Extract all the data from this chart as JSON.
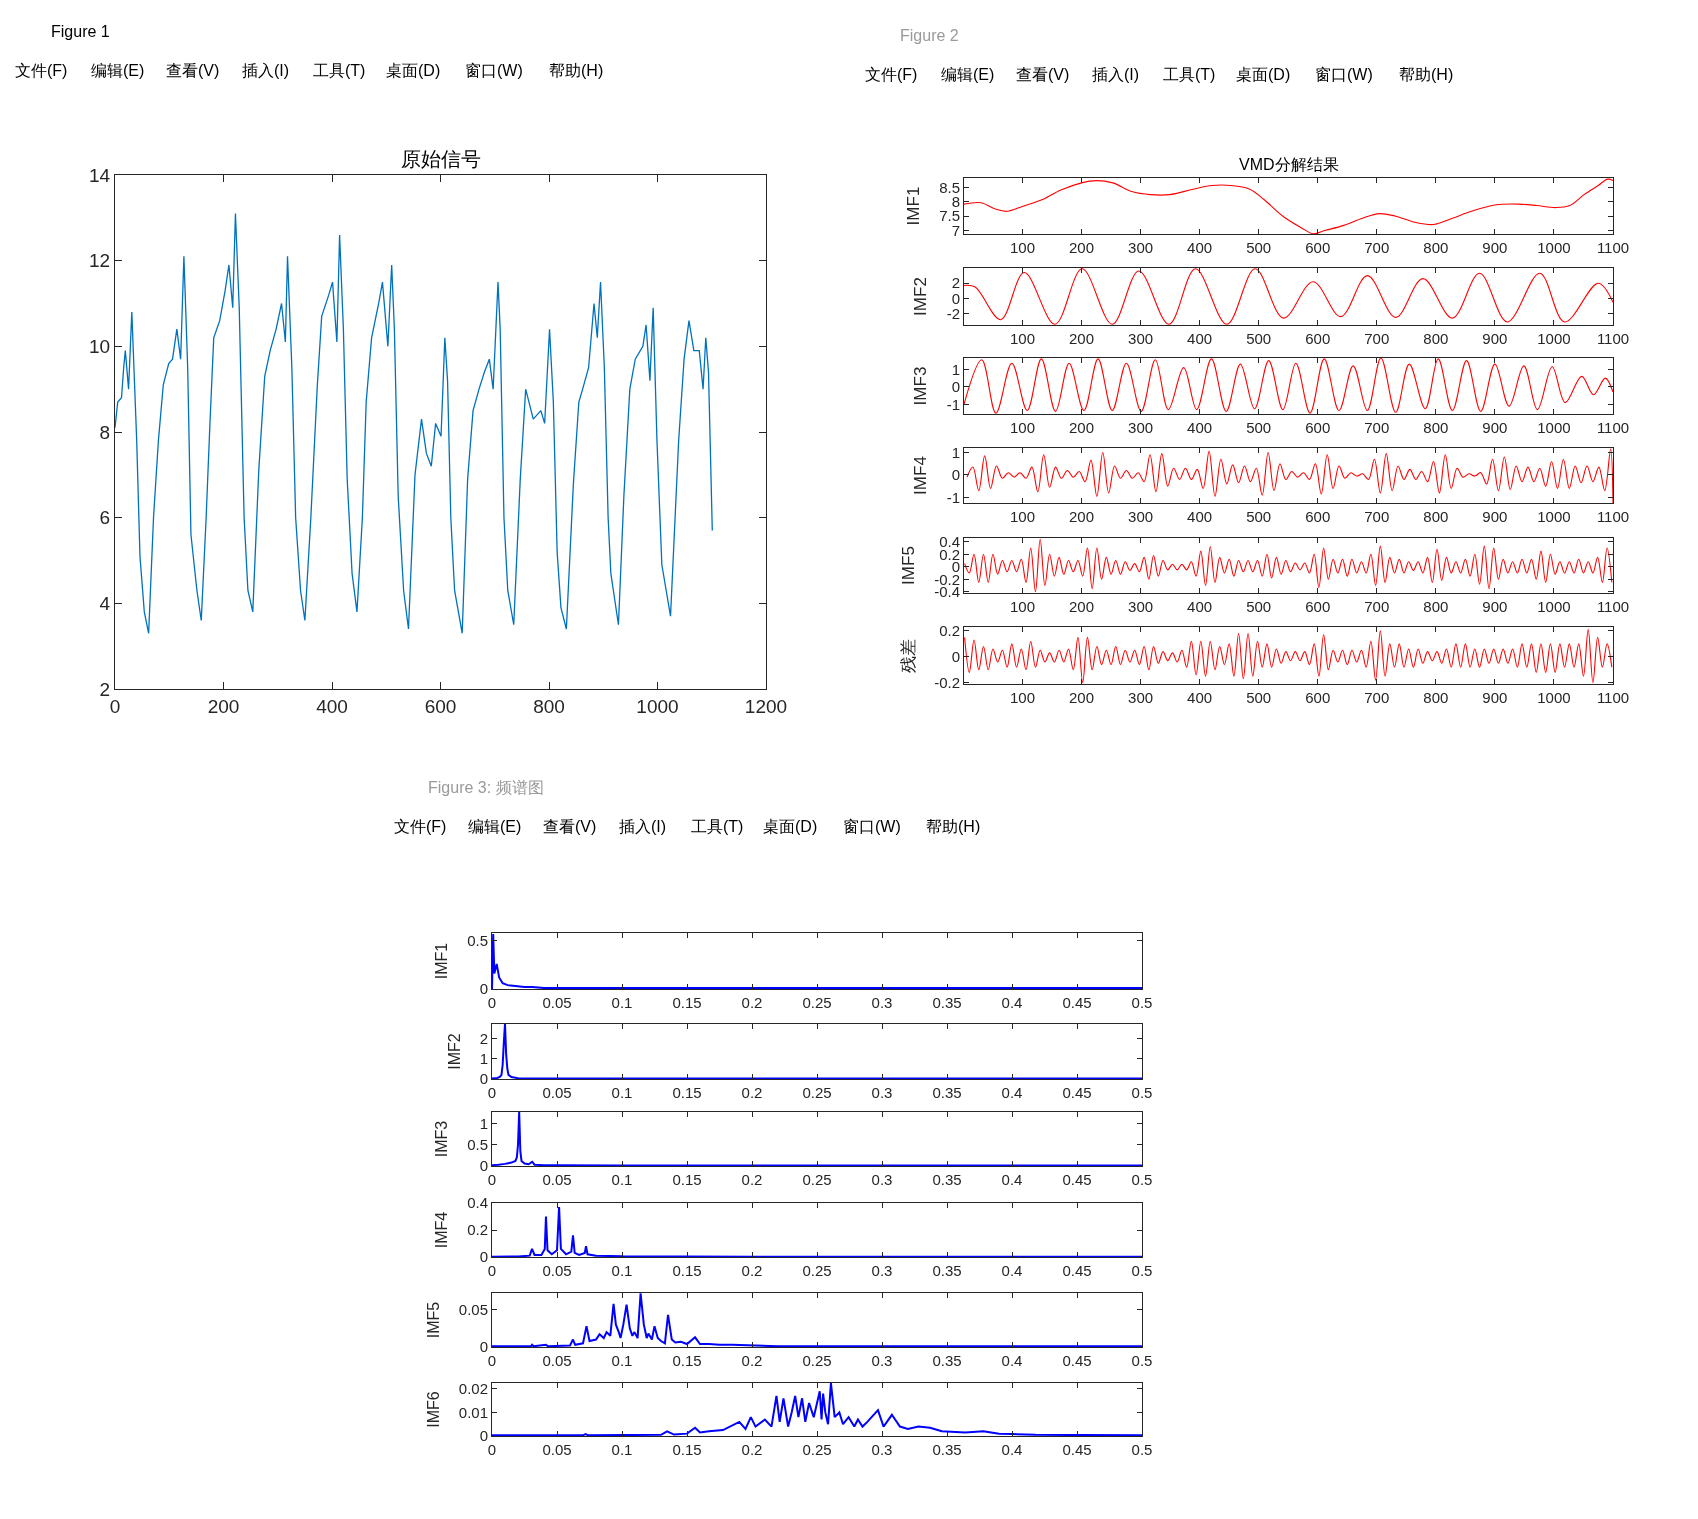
{
  "chart_data": [
    {
      "type": "line",
      "title": "原始信号",
      "annotations": [
        "Figure 1",
        "文件(F)",
        "编辑(E)",
        "查看(V)",
        "插入(I)",
        "工具(T)",
        "桌面(D)",
        "窗口(W)",
        "帮助(H)"
      ],
      "xlim": [
        0,
        1200
      ],
      "ylim": [
        2,
        14
      ],
      "xticks": [
        0,
        200,
        400,
        600,
        800,
        1000,
        1200
      ],
      "yticks": [
        2,
        4,
        6,
        8,
        10,
        12,
        14
      ],
      "series": [
        {
          "color": "#0072bd",
          "x": [
            0,
            5,
            12,
            16,
            19,
            25,
            31,
            40,
            46,
            54,
            62,
            71,
            80,
            89,
            99,
            106,
            114,
            121,
            127,
            134,
            140,
            151,
            159,
            168,
            175,
            182,
            193,
            203,
            210,
            217,
            222,
            229,
            238,
            245,
            254,
            265,
            276,
            286,
            297,
            307,
            314,
            318,
            326,
            333,
            342,
            350,
            361,
            373,
            381,
            394,
            401,
            409,
            414,
            421,
            428,
            437,
            446,
            456,
            463,
            473,
            486,
            493,
            503,
            510,
            515,
            522,
            532,
            541,
            553,
            565,
            574,
            583,
            591,
            601,
            608,
            613,
            619,
            626,
            633,
            640,
            650,
            660,
            671,
            681,
            690,
            697,
            706,
            710,
            717,
            724,
            735,
            747,
            757,
            771,
            785,
            792,
            801,
            808,
            815,
            822,
            832,
            845,
            855,
            862,
            873,
            883,
            889,
            895,
            902,
            909,
            914,
            928,
            938,
            949,
            959,
            973,
            979,
            986,
            992,
            999,
            1008,
            1024,
            1039,
            1049,
            1058,
            1067,
            1077,
            1084,
            1089,
            1094,
            1101
          ],
          "values": [
            8.1,
            8.7,
            8.8,
            9.5,
            9.9,
            9.0,
            10.8,
            7.8,
            5.1,
            3.8,
            3.3,
            6.0,
            7.8,
            9.1,
            9.6,
            9.7,
            10.4,
            9.7,
            12.1,
            9.5,
            5.6,
            4.3,
            3.6,
            6.0,
            8.2,
            10.2,
            10.6,
            11.3,
            11.9,
            10.9,
            13.1,
            10.9,
            6.0,
            4.3,
            3.8,
            7.1,
            9.3,
            9.9,
            10.4,
            11.0,
            10.1,
            12.1,
            9.5,
            6.0,
            4.3,
            3.6,
            6.0,
            9.1,
            10.7,
            11.2,
            11.5,
            10.1,
            12.6,
            10.4,
            6.9,
            4.7,
            3.8,
            6.0,
            8.7,
            10.2,
            11.0,
            11.5,
            10.0,
            11.9,
            10.4,
            6.5,
            4.3,
            3.4,
            7.0,
            8.3,
            7.5,
            7.2,
            8.2,
            7.9,
            10.2,
            9.2,
            6.0,
            4.3,
            3.8,
            3.3,
            6.9,
            8.5,
            9.0,
            9.4,
            9.7,
            9.0,
            11.5,
            10.4,
            6.0,
            4.3,
            3.5,
            6.9,
            9.0,
            8.3,
            8.5,
            8.2,
            10.4,
            8.7,
            5.2,
            3.9,
            3.4,
            6.8,
            8.7,
            9.0,
            9.5,
            11.0,
            10.2,
            11.5,
            9.5,
            6.0,
            4.7,
            3.5,
            6.5,
            9.0,
            9.7,
            10.0,
            10.5,
            9.2,
            10.9,
            7.8,
            4.9,
            3.7,
            7.8,
            9.7,
            10.6,
            9.9,
            9.9,
            9.0,
            10.2,
            9.4,
            5.7
          ]
        }
      ]
    },
    {
      "type": "line",
      "title": "VMD分解结果",
      "ylabel": "IMF1",
      "annotations": [
        "Figure 2",
        "文件(F)",
        "编辑(E)",
        "查看(V)",
        "插入(I)",
        "工具(T)",
        "桌面(D)",
        "窗口(W)",
        "帮助(H)"
      ],
      "xlim": [
        1,
        1100
      ],
      "ylim": [
        6.88,
        8.83
      ],
      "xticks": [
        100,
        200,
        300,
        400,
        500,
        600,
        700,
        800,
        900,
        1000,
        1100
      ],
      "yticks": [
        7,
        7.5,
        8,
        8.5
      ],
      "series": [
        {
          "color": "#ff0000",
          "x": [
            1,
            30,
            54,
            74,
            100,
            134,
            165,
            200,
            225,
            253,
            285,
            317,
            349,
            389,
            421,
            453,
            485,
            509,
            541,
            572,
            592,
            612,
            644,
            676,
            704,
            732,
            764,
            796,
            828,
            860,
            900,
            940,
            971,
            1003,
            1027,
            1051,
            1075,
            1091,
            1100
          ],
          "values": [
            7.92,
            7.97,
            7.75,
            7.67,
            7.84,
            8.08,
            8.41,
            8.66,
            8.74,
            8.66,
            8.36,
            8.25,
            8.25,
            8.44,
            8.57,
            8.57,
            8.44,
            8.08,
            7.5,
            7.1,
            6.89,
            7.0,
            7.18,
            7.43,
            7.59,
            7.5,
            7.29,
            7.21,
            7.43,
            7.67,
            7.89,
            7.92,
            7.87,
            7.8,
            7.87,
            8.25,
            8.57,
            8.79,
            8.74
          ]
        }
      ]
    },
    {
      "type": "line",
      "ylabel": "IMF2",
      "xlim": [
        1,
        1100
      ],
      "ylim": [
        -3.5,
        4.0
      ],
      "xticks": [
        100,
        200,
        300,
        400,
        500,
        600,
        700,
        800,
        900,
        1000,
        1100
      ],
      "yticks": [
        -2,
        0,
        2
      ],
      "series": [
        {
          "color": "#ff0000",
          "x": [
            1,
            20,
            63,
            103,
            155,
            201,
            252,
            297,
            348,
            393,
            446,
            494,
            542,
            592,
            639,
            684,
            732,
            778,
            828,
            874,
            921,
            976,
            1018,
            1075,
            1100
          ],
          "values": [
            1.7,
            1.5,
            -2.8,
            3.4,
            -3.4,
            3.9,
            -3.4,
            3.6,
            -3.4,
            3.9,
            -3.4,
            3.9,
            -2.6,
            2.2,
            -2.4,
            3.0,
            -2.5,
            2.6,
            -2.6,
            3.3,
            -3.1,
            3.3,
            -3.1,
            2.0,
            -0.5
          ]
        }
      ]
    },
    {
      "type": "line",
      "ylabel": "IMF3",
      "xlim": [
        1,
        1100
      ],
      "ylim": [
        -1.55,
        1.65
      ],
      "xticks": [
        100,
        200,
        300,
        400,
        500,
        600,
        700,
        800,
        900,
        1000,
        1100
      ],
      "yticks": [
        -1,
        0,
        1
      ],
      "series": [
        {
          "color": "#ff0000",
          "x": [
            1,
            31,
            55,
            82,
            108,
            132,
            156,
            179,
            204,
            228,
            252,
            276,
            301,
            325,
            347,
            373,
            395,
            420,
            445,
            469,
            493,
            517,
            541,
            563,
            587,
            611,
            636,
            660,
            684,
            707,
            732,
            755,
            782,
            804,
            828,
            852,
            876,
            900,
            924,
            949,
            972,
            997,
            1019,
            1047,
            1067,
            1087,
            1100
          ],
          "values": [
            -1.0,
            1.55,
            -1.5,
            1.35,
            -1.35,
            1.6,
            -1.4,
            1.35,
            -1.35,
            1.6,
            -1.35,
            1.35,
            -1.4,
            1.55,
            -1.3,
            1.1,
            -1.3,
            1.6,
            -1.4,
            1.3,
            -1.25,
            1.5,
            -1.3,
            1.35,
            -1.5,
            1.6,
            -1.35,
            1.2,
            -1.35,
            1.65,
            -1.45,
            1.3,
            -1.25,
            1.6,
            -1.35,
            1.5,
            -1.4,
            1.3,
            -1.1,
            1.2,
            -1.3,
            1.15,
            -0.9,
            0.6,
            -0.45,
            0.5,
            -0.3
          ]
        }
      ]
    },
    {
      "type": "line",
      "ylabel": "IMF4",
      "xlim": [
        1,
        1100
      ],
      "ylim": [
        -1.25,
        1.2
      ],
      "xticks": [
        100,
        200,
        300,
        400,
        500,
        600,
        700,
        800,
        900,
        1000,
        1100
      ],
      "yticks": [
        -1,
        0,
        1
      ],
      "series": [
        {
          "color": "#ff0000",
          "x": [
            6,
            16,
            26,
            36,
            46,
            56,
            66,
            76,
            86,
            96,
            106,
            116,
            126,
            136,
            146,
            156,
            166,
            176,
            186,
            196,
            206,
            216,
            226,
            236,
            246,
            256,
            266,
            276,
            286,
            296,
            306,
            316,
            326,
            336,
            346,
            356,
            366,
            376,
            386,
            396,
            406,
            416,
            426,
            436,
            446,
            456,
            466,
            476,
            486,
            496,
            506,
            516,
            526,
            536,
            546,
            556,
            566,
            576,
            586,
            596,
            606,
            616,
            626,
            636,
            646,
            656,
            666,
            676,
            686,
            696,
            706,
            716,
            726,
            736,
            746,
            756,
            766,
            776,
            786,
            796,
            806,
            816,
            826,
            836,
            846,
            856,
            866,
            876,
            886,
            896,
            906,
            916,
            926,
            936,
            946,
            956,
            966,
            976,
            986,
            996,
            1006,
            1016,
            1026,
            1036,
            1046,
            1056,
            1066,
            1076,
            1086,
            1096,
            1100
          ],
          "values": [
            -0.1,
            0.35,
            -0.7,
            0.85,
            -0.6,
            0.4,
            -0.15,
            0.1,
            -0.1,
            0.1,
            -0.15,
            0.35,
            -0.75,
            0.9,
            -0.55,
            0.35,
            -0.15,
            0.2,
            -0.1,
            0.15,
            -0.3,
            0.65,
            -0.95,
            1.0,
            -0.8,
            0.4,
            -0.15,
            0.2,
            -0.15,
            0.1,
            -0.3,
            0.9,
            -0.75,
            0.95,
            -0.5,
            0.3,
            -0.2,
            0.3,
            -0.2,
            0.25,
            -0.6,
            1.05,
            -0.95,
            0.7,
            -0.4,
            0.45,
            -0.35,
            0.4,
            -0.3,
            0.3,
            -0.9,
            1.0,
            -0.7,
            0.5,
            -0.2,
            0.15,
            -0.1,
            0.1,
            -0.2,
            0.5,
            -0.85,
            0.9,
            -0.6,
            0.4,
            -0.15,
            0.1,
            -0.05,
            0.05,
            -0.2,
            0.7,
            -0.8,
            0.95,
            -0.7,
            0.4,
            -0.2,
            0.25,
            -0.2,
            0.15,
            -0.3,
            0.6,
            -0.8,
            0.9,
            -0.6,
            0.3,
            -0.1,
            0.05,
            -0.05,
            0.1,
            -0.4,
            0.7,
            -0.7,
            0.8,
            -0.65,
            0.4,
            -0.3,
            0.35,
            -0.3,
            0.3,
            -0.5,
            0.6,
            -0.6,
            0.7,
            -0.6,
            0.4,
            -0.35,
            0.4,
            -0.3,
            0.35,
            -0.7,
            1.15,
            -1.25
          ]
        }
      ]
    },
    {
      "type": "line",
      "ylabel": "IMF5",
      "xlim": [
        1,
        1100
      ],
      "ylim": [
        -0.42,
        0.46
      ],
      "xticks": [
        100,
        200,
        300,
        400,
        500,
        600,
        700,
        800,
        900,
        1000,
        1100
      ],
      "yticks": [
        -0.4,
        -0.2,
        0,
        0.2,
        0.4
      ],
      "series": [
        {
          "color": "#ff0000",
          "x": [
            2,
            10,
            18,
            26,
            34,
            42,
            50,
            58,
            66,
            74,
            82,
            90,
            98,
            106,
            114,
            122,
            130,
            138,
            146,
            154,
            162,
            170,
            178,
            186,
            194,
            202,
            210,
            218,
            226,
            234,
            242,
            250,
            258,
            266,
            274,
            282,
            290,
            298,
            306,
            314,
            322,
            330,
            338,
            346,
            354,
            362,
            370,
            378,
            386,
            394,
            402,
            410,
            418,
            426,
            434,
            442,
            450,
            458,
            466,
            474,
            482,
            490,
            498,
            506,
            514,
            522,
            530,
            538,
            546,
            554,
            562,
            570,
            578,
            586,
            594,
            602,
            610,
            618,
            626,
            634,
            642,
            650,
            658,
            666,
            674,
            682,
            690,
            698,
            706,
            714,
            722,
            730,
            738,
            746,
            754,
            762,
            770,
            778,
            786,
            794,
            802,
            810,
            818,
            826,
            834,
            842,
            850,
            858,
            866,
            874,
            882,
            890,
            898,
            906,
            914,
            922,
            930,
            938,
            946,
            954,
            962,
            970,
            978,
            986,
            994,
            1002,
            1010,
            1018,
            1026,
            1034,
            1042,
            1050,
            1058,
            1066,
            1074,
            1082,
            1090,
            1098
          ],
          "values": [
            0.05,
            -0.1,
            0.2,
            -0.25,
            0.2,
            -0.25,
            0.2,
            -0.12,
            0.1,
            -0.08,
            0.1,
            -0.08,
            0.12,
            -0.25,
            0.3,
            -0.4,
            0.44,
            -0.3,
            0.2,
            -0.15,
            0.15,
            -0.12,
            0.1,
            -0.08,
            0.1,
            -0.15,
            0.3,
            -0.35,
            0.3,
            -0.2,
            0.15,
            -0.12,
            0.1,
            -0.12,
            0.08,
            -0.06,
            0.05,
            -0.08,
            0.15,
            -0.2,
            0.18,
            -0.15,
            0.1,
            -0.05,
            0.04,
            -0.05,
            0.04,
            -0.05,
            0.08,
            -0.15,
            0.25,
            -0.3,
            0.32,
            -0.25,
            0.15,
            -0.1,
            0.12,
            -0.15,
            0.1,
            -0.08,
            0.1,
            -0.08,
            0.1,
            -0.15,
            0.2,
            -0.18,
            0.15,
            -0.12,
            0.1,
            -0.08,
            0.06,
            -0.05,
            0.06,
            -0.1,
            0.2,
            -0.33,
            0.3,
            -0.2,
            0.12,
            -0.1,
            0.12,
            -0.15,
            0.12,
            -0.1,
            0.08,
            -0.1,
            0.2,
            -0.3,
            0.33,
            -0.25,
            0.15,
            -0.1,
            0.12,
            -0.1,
            0.08,
            -0.06,
            0.08,
            -0.1,
            0.15,
            -0.25,
            0.28,
            -0.22,
            0.15,
            -0.1,
            0.08,
            -0.1,
            0.12,
            -0.15,
            0.2,
            -0.28,
            0.33,
            -0.35,
            0.3,
            -0.2,
            0.12,
            -0.1,
            0.08,
            -0.1,
            0.12,
            -0.1,
            0.12,
            -0.2,
            0.25,
            -0.25,
            0.2,
            -0.12,
            0.08,
            -0.1,
            0.08,
            -0.1,
            0.12,
            -0.1,
            0.08,
            -0.1,
            0.15,
            -0.25,
            0.3,
            -0.25
          ]
        }
      ]
    },
    {
      "type": "line",
      "ylabel": "残差",
      "xlim": [
        1,
        1100
      ],
      "ylim": [
        -0.21,
        0.23
      ],
      "xticks": [
        100,
        200,
        300,
        400,
        500,
        600,
        700,
        800,
        900,
        1000,
        1100
      ],
      "yticks": [
        -0.2,
        0,
        0.2
      ],
      "series": [
        {
          "color": "#ff0000",
          "x": [
            2,
            10,
            18,
            26,
            34,
            42,
            50,
            58,
            66,
            74,
            82,
            90,
            98,
            106,
            114,
            122,
            130,
            138,
            146,
            154,
            162,
            170,
            178,
            186,
            194,
            202,
            210,
            218,
            226,
            234,
            242,
            250,
            258,
            266,
            274,
            282,
            290,
            298,
            306,
            314,
            322,
            330,
            338,
            346,
            354,
            362,
            370,
            378,
            386,
            394,
            402,
            410,
            418,
            426,
            434,
            442,
            450,
            458,
            466,
            474,
            482,
            490,
            498,
            506,
            514,
            522,
            530,
            538,
            546,
            554,
            562,
            570,
            578,
            586,
            594,
            602,
            610,
            618,
            626,
            634,
            642,
            650,
            658,
            666,
            674,
            682,
            690,
            698,
            706,
            714,
            722,
            730,
            738,
            746,
            754,
            762,
            770,
            778,
            786,
            794,
            802,
            810,
            818,
            826,
            834,
            842,
            850,
            858,
            866,
            874,
            882,
            890,
            898,
            906,
            914,
            922,
            930,
            938,
            946,
            954,
            962,
            970,
            978,
            986,
            994,
            1002,
            1010,
            1018,
            1026,
            1034,
            1042,
            1050,
            1058,
            1066,
            1074,
            1082,
            1090,
            1098
          ],
          "values": [
            0.15,
            -0.12,
            0.13,
            -0.1,
            0.08,
            -0.1,
            0.06,
            -0.04,
            0.05,
            -0.08,
            0.1,
            -0.08,
            0.06,
            -0.1,
            0.12,
            -0.08,
            0.05,
            -0.04,
            0.03,
            -0.04,
            0.05,
            -0.04,
            0.06,
            -0.1,
            0.15,
            -0.2,
            0.15,
            -0.1,
            0.08,
            -0.06,
            0.05,
            -0.06,
            0.08,
            -0.06,
            0.05,
            -0.04,
            0.05,
            -0.06,
            0.08,
            -0.1,
            0.08,
            -0.05,
            0.04,
            -0.03,
            0.03,
            -0.04,
            0.05,
            -0.08,
            0.12,
            -0.14,
            0.12,
            -0.15,
            0.12,
            -0.1,
            0.08,
            -0.06,
            0.1,
            -0.15,
            0.18,
            -0.17,
            0.18,
            -0.15,
            0.12,
            -0.08,
            0.1,
            -0.08,
            0.06,
            -0.05,
            0.04,
            -0.03,
            0.04,
            -0.03,
            0.04,
            -0.06,
            0.1,
            -0.15,
            0.17,
            -0.1,
            0.05,
            -0.04,
            0.05,
            -0.06,
            0.05,
            -0.04,
            0.05,
            -0.08,
            0.12,
            -0.18,
            0.2,
            -0.15,
            0.1,
            -0.08,
            0.1,
            -0.08,
            0.06,
            -0.08,
            0.06,
            -0.05,
            0.04,
            -0.03,
            0.04,
            -0.05,
            0.06,
            -0.08,
            0.1,
            -0.08,
            0.1,
            -0.08,
            0.06,
            -0.08,
            0.06,
            -0.05,
            0.06,
            -0.05,
            0.06,
            -0.05,
            0.06,
            -0.08,
            0.1,
            -0.08,
            0.1,
            -0.12,
            0.1,
            -0.12,
            0.1,
            -0.12,
            0.1,
            -0.08,
            0.1,
            -0.08,
            0.1,
            -0.15,
            0.21,
            -0.2,
            0.15,
            -0.08,
            0.1,
            -0.08
          ]
        }
      ]
    },
    {
      "type": "line",
      "ylabel": "IMF1",
      "annotations": [
        "Figure 3: 频谱图",
        "文件(F)",
        "编辑(E)",
        "查看(V)",
        "插入(I)",
        "工具(T)",
        "桌面(D)",
        "窗口(W)",
        "帮助(H)"
      ],
      "xlim": [
        0,
        0.5
      ],
      "ylim": [
        0,
        0.58
      ],
      "xticks": [
        0,
        0.05,
        0.1,
        0.15,
        0.2,
        0.25,
        0.3,
        0.35,
        0.4,
        0.45,
        0.5
      ],
      "yticks": [
        0,
        0.5
      ],
      "series": [
        {
          "color": "#0000ff",
          "x": [
            0,
            0.0009,
            0.0018,
            0.0036,
            0.0055,
            0.0082,
            0.012,
            0.018,
            0.025,
            0.031,
            0.04,
            0.06,
            0.1,
            0.2,
            0.3,
            0.4,
            0.5
          ],
          "values": [
            0.0,
            0.57,
            0.16,
            0.26,
            0.12,
            0.06,
            0.04,
            0.03,
            0.02,
            0.02,
            0.01,
            0.01,
            0.01,
            0.01,
            0.01,
            0.01,
            0.01
          ]
        }
      ]
    },
    {
      "type": "line",
      "ylabel": "IMF2",
      "xlim": [
        0,
        0.5
      ],
      "ylim": [
        0,
        2.7
      ],
      "xticks": [
        0,
        0.05,
        0.1,
        0.15,
        0.2,
        0.25,
        0.3,
        0.35,
        0.4,
        0.45,
        0.5
      ],
      "yticks": [
        0,
        1,
        2
      ],
      "series": [
        {
          "color": "#0000ff",
          "x": [
            0,
            0.004,
            0.006,
            0.0073,
            0.0082,
            0.0091,
            0.01,
            0.0109,
            0.0118,
            0.0127,
            0.015,
            0.02,
            0.05,
            0.5
          ],
          "values": [
            0.02,
            0.05,
            0.1,
            0.2,
            0.7,
            1.8,
            2.7,
            1.2,
            0.5,
            0.2,
            0.1,
            0.04,
            0.02,
            0.02
          ]
        }
      ]
    },
    {
      "type": "line",
      "ylabel": "IMF3",
      "xlim": [
        0,
        0.5
      ],
      "ylim": [
        0,
        1.27
      ],
      "xticks": [
        0,
        0.05,
        0.1,
        0.15,
        0.2,
        0.25,
        0.3,
        0.35,
        0.4,
        0.45,
        0.5
      ],
      "yticks": [
        0,
        0.5,
        1
      ],
      "series": [
        {
          "color": "#0000ff",
          "x": [
            0,
            0.005,
            0.01,
            0.015,
            0.018,
            0.0191,
            0.02,
            0.0209,
            0.0218,
            0.0227,
            0.025,
            0.0282,
            0.0309,
            0.0327,
            0.04,
            0.05,
            0.1,
            0.5
          ],
          "values": [
            0.02,
            0.03,
            0.05,
            0.08,
            0.12,
            0.2,
            0.5,
            1.27,
            0.35,
            0.12,
            0.06,
            0.04,
            0.1,
            0.03,
            0.02,
            0.02,
            0.01,
            0.01
          ]
        }
      ]
    },
    {
      "type": "line",
      "ylabel": "IMF4",
      "xlim": [
        0,
        0.5
      ],
      "ylim": [
        0,
        0.4
      ],
      "xticks": [
        0,
        0.05,
        0.1,
        0.15,
        0.2,
        0.25,
        0.3,
        0.35,
        0.4,
        0.45,
        0.5
      ],
      "yticks": [
        0,
        0.2,
        0.4
      ],
      "series": [
        {
          "color": "#0000ff",
          "x": [
            0,
            0.02,
            0.029,
            0.0308,
            0.0327,
            0.038,
            0.0406,
            0.0415,
            0.0427,
            0.046,
            0.05,
            0.0516,
            0.053,
            0.057,
            0.061,
            0.0623,
            0.0636,
            0.067,
            0.0714,
            0.0723,
            0.0735,
            0.08,
            0.09,
            0.1,
            0.15,
            0.2,
            0.5
          ],
          "values": [
            0.002,
            0.004,
            0.01,
            0.06,
            0.015,
            0.015,
            0.06,
            0.3,
            0.05,
            0.02,
            0.05,
            0.37,
            0.06,
            0.02,
            0.04,
            0.16,
            0.03,
            0.015,
            0.03,
            0.08,
            0.02,
            0.01,
            0.008,
            0.005,
            0.003,
            0.002,
            0.002
          ]
        }
      ]
    },
    {
      "type": "line",
      "ylabel": "IMF5",
      "xlim": [
        0,
        0.5
      ],
      "ylim": [
        0,
        0.0725
      ],
      "xticks": [
        0,
        0.05,
        0.1,
        0.15,
        0.2,
        0.25,
        0.3,
        0.35,
        0.4,
        0.45,
        0.5
      ],
      "yticks": [
        0,
        0.05
      ],
      "series": [
        {
          "color": "#0000ff",
          "x": [
            0,
            0.03,
            0.0308,
            0.032,
            0.0415,
            0.043,
            0.06,
            0.0623,
            0.064,
            0.07,
            0.0727,
            0.075,
            0.08,
            0.0827,
            0.086,
            0.0881,
            0.091,
            0.0935,
            0.0953,
            0.0975,
            0.0989,
            0.101,
            0.1035,
            0.106,
            0.108,
            0.1096,
            0.112,
            0.1143,
            0.1168,
            0.119,
            0.1203,
            0.123,
            0.125,
            0.1275,
            0.13,
            0.133,
            0.1354,
            0.1383,
            0.141,
            0.1454,
            0.15,
            0.1562,
            0.16,
            0.1669,
            0.175,
            0.1848,
            0.2027,
            0.22,
            0.3,
            0.5
          ],
          "values": [
            0.001,
            0.001,
            0.003,
            0.001,
            0.003,
            0.001,
            0.002,
            0.01,
            0.003,
            0.005,
            0.028,
            0.008,
            0.01,
            0.017,
            0.012,
            0.02,
            0.015,
            0.058,
            0.03,
            0.02,
            0.012,
            0.03,
            0.057,
            0.025,
            0.015,
            0.02,
            0.012,
            0.072,
            0.03,
            0.012,
            0.018,
            0.01,
            0.028,
            0.012,
            0.008,
            0.005,
            0.043,
            0.01,
            0.006,
            0.007,
            0.004,
            0.013,
            0.004,
            0.004,
            0.003,
            0.003,
            0.002,
            0.001,
            0.001,
            0.001
          ]
        }
      ]
    },
    {
      "type": "line",
      "ylabel": "IMF6",
      "xlim": [
        0,
        0.5
      ],
      "ylim": [
        0,
        0.0225
      ],
      "xticks": [
        0,
        0.05,
        0.1,
        0.15,
        0.2,
        0.25,
        0.3,
        0.35,
        0.4,
        0.45,
        0.5
      ],
      "yticks": [
        0,
        0.01,
        0.02
      ],
      "series": [
        {
          "color": "#0000ff",
          "x": [
            0,
            0.07,
            0.072,
            0.074,
            0.13,
            0.1347,
            0.14,
            0.15,
            0.1562,
            0.16,
            0.1669,
            0.1777,
            0.1902,
            0.195,
            0.1991,
            0.2027,
            0.2099,
            0.215,
            0.2188,
            0.2213,
            0.2242,
            0.2278,
            0.2305,
            0.2332,
            0.2357,
            0.2385,
            0.241,
            0.2439,
            0.2475,
            0.2521,
            0.2535,
            0.2547,
            0.2564,
            0.2585,
            0.2607,
            0.2636,
            0.2672,
            0.27,
            0.2743,
            0.2787,
            0.2815,
            0.285,
            0.2887,
            0.2969,
            0.3012,
            0.3076,
            0.3138,
            0.32,
            0.328,
            0.337,
            0.346,
            0.364,
            0.378,
            0.39,
            0.4,
            0.418,
            0.453,
            0.5
          ],
          "values": [
            0.0003,
            0.0003,
            0.0008,
            0.0003,
            0.0005,
            0.002,
            0.0006,
            0.001,
            0.0035,
            0.0015,
            0.002,
            0.0025,
            0.006,
            0.003,
            0.008,
            0.004,
            0.007,
            0.004,
            0.017,
            0.006,
            0.016,
            0.004,
            0.01,
            0.017,
            0.008,
            0.016,
            0.006,
            0.014,
            0.008,
            0.019,
            0.007,
            0.018,
            0.01,
            0.005,
            0.0225,
            0.008,
            0.01,
            0.005,
            0.008,
            0.004,
            0.007,
            0.004,
            0.006,
            0.011,
            0.004,
            0.009,
            0.004,
            0.003,
            0.004,
            0.0035,
            0.002,
            0.0015,
            0.002,
            0.001,
            0.0008,
            0.0005,
            0.0004,
            0.0003
          ]
        }
      ]
    }
  ]
}
